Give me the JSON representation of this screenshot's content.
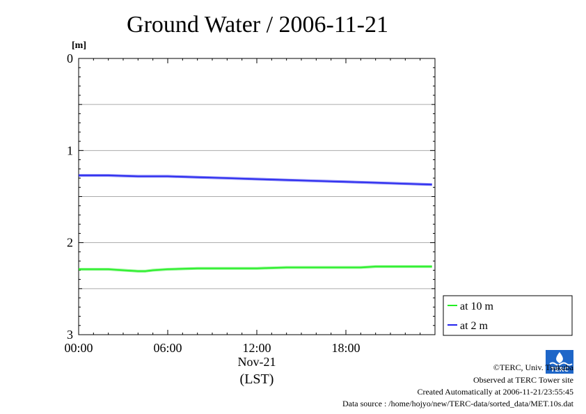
{
  "chart_data": {
    "type": "line",
    "title": "Ground Water / 2006-11-21",
    "unit_label": "[m]",
    "ylim": [
      0,
      3
    ],
    "y_inverted": true,
    "yticks": [
      0,
      1,
      2,
      3
    ],
    "ytick_labels": [
      "0",
      "1",
      "2",
      "3"
    ],
    "y_gridlines": [
      0.5,
      1,
      1.5,
      2,
      2.5
    ],
    "xlim": [
      0,
      24
    ],
    "xticks": [
      0,
      6,
      12,
      18
    ],
    "xtick_labels": [
      "00:00",
      "06:00",
      "12:00",
      "18:00"
    ],
    "x_date_label": "Nov-21",
    "x_tz_label": "(LST)",
    "grid": true,
    "legend_position": "right-bottom",
    "series": [
      {
        "name": "at 10 m",
        "color": "#22ee22",
        "x": [
          0,
          1,
          2,
          3,
          4,
          4.5,
          5,
          6,
          8,
          10,
          12,
          14,
          16,
          18,
          19,
          20,
          21,
          22,
          23.8
        ],
        "y": [
          2.29,
          2.29,
          2.29,
          2.3,
          2.31,
          2.31,
          2.3,
          2.29,
          2.28,
          2.28,
          2.28,
          2.27,
          2.27,
          2.27,
          2.27,
          2.26,
          2.26,
          2.26,
          2.26
        ]
      },
      {
        "name": "at 2 m",
        "color": "#2222ee",
        "x": [
          0,
          2,
          4,
          6,
          8,
          10,
          12,
          14,
          16,
          18,
          20,
          22,
          23.8
        ],
        "y": [
          1.27,
          1.27,
          1.28,
          1.28,
          1.29,
          1.3,
          1.31,
          1.32,
          1.33,
          1.34,
          1.35,
          1.36,
          1.37
        ]
      }
    ]
  },
  "footer": {
    "copyright": "©TERC, Univ. Tsukuba",
    "observed": "Observed at TERC Tower site",
    "created": "Created Automatically at 2006-11-21/23:55:45",
    "source": "Data source : /home/hojyo/new/TERC-data/sorted_data/MET.10s.dat"
  },
  "logo": {
    "text": "TERC"
  }
}
